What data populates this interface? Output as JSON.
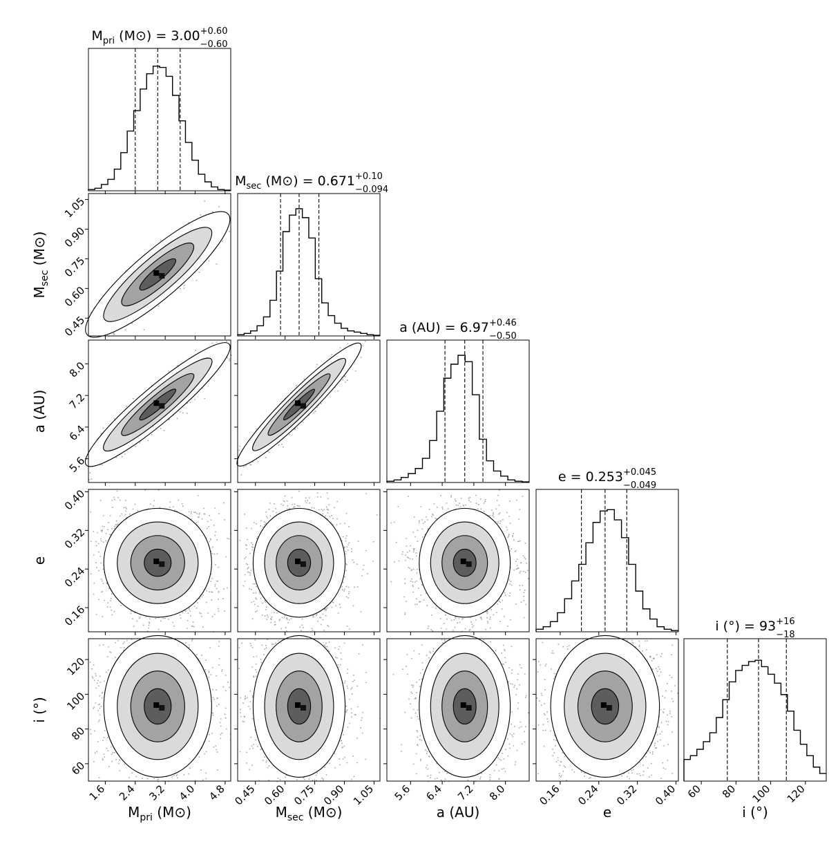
{
  "chart_data": {
    "type": "corner",
    "parameters": [
      {
        "key": "mpri",
        "axis_label": "M",
        "axis_sub": "pri",
        "axis_unit": " (M⊙)",
        "title_pre": "M",
        "title_sub": "pri",
        "title_unit": " (M⊙) = ",
        "median": "3.00",
        "err_plus": "+0.60",
        "err_minus": "−0.60",
        "median_val": 3.0,
        "plus_val": 0.6,
        "minus_val": 0.6,
        "range": [
          1.15,
          4.95
        ],
        "ticks": [
          1.6,
          2.4,
          3.2,
          4.0,
          4.8
        ],
        "tick_labels": [
          "1.6",
          "2.4",
          "3.2",
          "4.0",
          "4.8"
        ]
      },
      {
        "key": "msec",
        "axis_label": "M",
        "axis_sub": "sec",
        "axis_unit": " (M⊙)",
        "title_pre": "M",
        "title_sub": "sec",
        "title_unit": " (M⊙) = ",
        "median": "0.671",
        "err_plus": "+0.10",
        "err_minus": "−0.094",
        "median_val": 0.671,
        "plus_val": 0.1,
        "minus_val": 0.094,
        "range": [
          0.36,
          1.08
        ],
        "ticks": [
          0.45,
          0.6,
          0.75,
          0.9,
          1.05
        ],
        "tick_labels": [
          "0.45",
          "0.60",
          "0.75",
          "0.90",
          "1.05"
        ]
      },
      {
        "key": "a",
        "axis_label": "a (AU)",
        "axis_sub": "",
        "axis_unit": "",
        "title_pre": "a (AU) = ",
        "title_sub": "",
        "title_unit": "",
        "median": "6.97",
        "err_plus": "+0.46",
        "err_minus": "−0.50",
        "median_val": 6.97,
        "plus_val": 0.46,
        "minus_val": 0.5,
        "range": [
          5.0,
          8.6
        ],
        "ticks": [
          5.6,
          6.4,
          7.2,
          8.0
        ],
        "tick_labels": [
          "5.6",
          "6.4",
          "7.2",
          "8.0"
        ]
      },
      {
        "key": "e",
        "axis_label": "e",
        "axis_sub": "",
        "axis_unit": "",
        "title_pre": "e = ",
        "title_sub": "",
        "title_unit": "",
        "median": "0.253",
        "err_plus": "+0.045",
        "err_minus": "−0.049",
        "median_val": 0.253,
        "plus_val": 0.045,
        "minus_val": 0.049,
        "range": [
          0.11,
          0.405
        ],
        "ticks": [
          0.16,
          0.24,
          0.32,
          0.4
        ],
        "tick_labels": [
          "0.16",
          "0.24",
          "0.32",
          "0.40"
        ]
      },
      {
        "key": "i",
        "axis_label": "i (°)",
        "axis_sub": "",
        "axis_unit": "",
        "title_pre": "i (°) = ",
        "title_sub": "",
        "title_unit": "",
        "median": "93",
        "err_plus": "+16",
        "err_minus": "−18",
        "median_val": 93,
        "plus_val": 16,
        "minus_val": 18,
        "range": [
          50,
          132
        ],
        "ticks": [
          60,
          80,
          100,
          120
        ],
        "tick_labels": [
          "60",
          "80",
          "100",
          "120"
        ]
      }
    ],
    "histograms": [
      [
        0.01,
        0.02,
        0.05,
        0.09,
        0.17,
        0.3,
        0.47,
        0.63,
        0.8,
        0.92,
        0.98,
        0.97,
        0.9,
        0.75,
        0.55,
        0.38,
        0.24,
        0.13,
        0.07,
        0.03,
        0.01,
        0.005
      ],
      [
        0.01,
        0.02,
        0.04,
        0.08,
        0.15,
        0.28,
        0.51,
        0.82,
        0.95,
        1.0,
        0.93,
        0.77,
        0.45,
        0.26,
        0.16,
        0.1,
        0.06,
        0.04,
        0.03,
        0.02,
        0.01,
        0.005
      ],
      [
        0.01,
        0.02,
        0.04,
        0.07,
        0.11,
        0.19,
        0.33,
        0.56,
        0.82,
        0.93,
        1.0,
        0.95,
        0.69,
        0.34,
        0.17,
        0.09,
        0.05,
        0.02,
        0.01,
        0.005
      ],
      [
        0.02,
        0.04,
        0.08,
        0.15,
        0.26,
        0.4,
        0.53,
        0.7,
        0.86,
        0.95,
        0.96,
        0.88,
        0.74,
        0.53,
        0.32,
        0.18,
        0.1,
        0.04,
        0.02,
        0.01
      ],
      [
        0.17,
        0.2,
        0.25,
        0.31,
        0.38,
        0.5,
        0.64,
        0.78,
        0.87,
        0.91,
        0.94,
        0.95,
        0.9,
        0.84,
        0.77,
        0.68,
        0.55,
        0.4,
        0.29,
        0.2,
        0.11,
        0.06
      ]
    ]
  }
}
